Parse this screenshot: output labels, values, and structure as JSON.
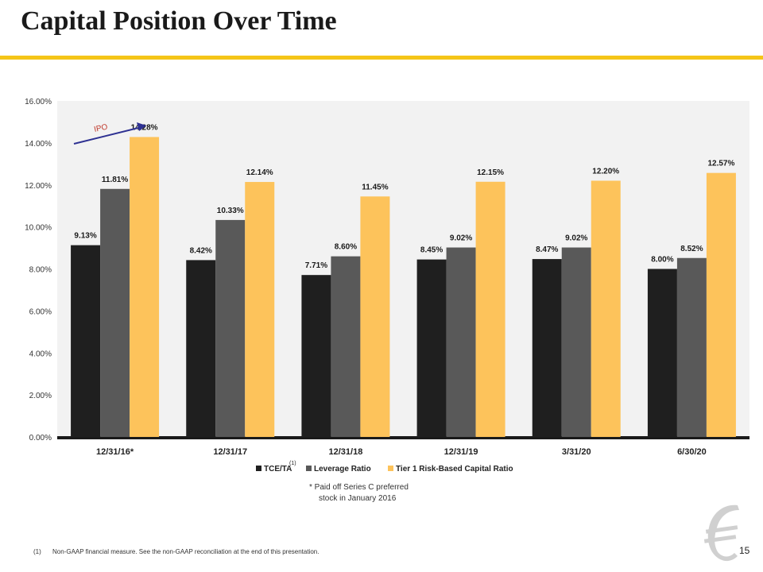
{
  "slide": {
    "title": "Capital Position Over Time",
    "page_number": "15",
    "note_line1": "* Paid off Series C preferred",
    "note_line2": "stock in January 2016",
    "footnote_marker": "(1)",
    "footnote_text": "Non-GAAP financial measure. See the non-GAAP reconciliation at the end of this presentation.",
    "ipo_label": "IPO"
  },
  "colors": {
    "accent_gold": "#f5c518",
    "tce": "#1f1f1f",
    "leverage": "#595959",
    "tier1": "#fdc35b",
    "plot_bg": "#f2f2f2",
    "ipo_arrow": "#2e3192",
    "ipo_text": "#c0392b"
  },
  "chart_data": {
    "type": "bar",
    "categories": [
      "12/31/16*",
      "12/31/17",
      "12/31/18",
      "12/31/19",
      "3/31/20",
      "6/30/20"
    ],
    "series": [
      {
        "name": "TCE/TA",
        "superscript": "(1)",
        "values": [
          9.13,
          8.42,
          7.71,
          8.45,
          8.47,
          8.0
        ],
        "labels": [
          "9.13%",
          "8.42%",
          "7.71%",
          "8.45%",
          "8.47%",
          "8.00%"
        ]
      },
      {
        "name": "Leverage Ratio",
        "values": [
          11.81,
          10.33,
          8.6,
          9.02,
          9.02,
          8.52
        ],
        "labels": [
          "11.81%",
          "10.33%",
          "8.60%",
          "9.02%",
          "9.02%",
          "8.52%"
        ]
      },
      {
        "name": "Tier 1 Risk-Based Capital Ratio",
        "values": [
          14.28,
          12.14,
          11.45,
          12.15,
          12.2,
          12.57
        ],
        "labels": [
          "14.28%",
          "12.14%",
          "11.45%",
          "12.15%",
          "12.20%",
          "12.57%"
        ]
      }
    ],
    "y_ticks": [
      "0.00%",
      "2.00%",
      "4.00%",
      "6.00%",
      "8.00%",
      "10.00%",
      "12.00%",
      "14.00%",
      "16.00%"
    ],
    "ylim": [
      0,
      16
    ],
    "grid": false,
    "legend": "bottom",
    "title": "",
    "xlabel": "",
    "ylabel": ""
  }
}
